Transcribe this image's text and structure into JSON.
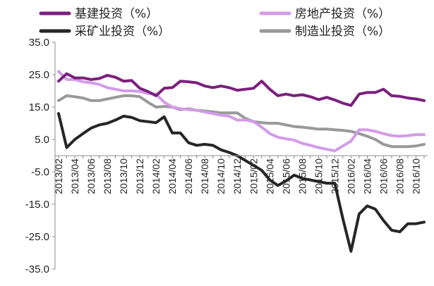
{
  "chart_data": {
    "type": "line",
    "ylim": [
      -35,
      35
    ],
    "yticks": [
      "35.0",
      "25.0",
      "15.0",
      "5.0",
      "-5.0",
      "-15.0",
      "-25.0",
      "-35.0"
    ],
    "grid": false,
    "legend_position": "top",
    "x_tick_labels": [
      "2013/02",
      "2013/04",
      "2013/06",
      "2013/08",
      "2013/10",
      "2013/12",
      "2014/02",
      "2014/04",
      "2014/06",
      "2014/08",
      "2014/10",
      "2014/12",
      "2015/02",
      "2015/04",
      "2015/06",
      "2015/08",
      "2015/10",
      "2015/12",
      "2016/02",
      "2016/04",
      "2016/06",
      "2016/08",
      "2016/10"
    ],
    "x": [
      "2013/02",
      "2013/03",
      "2013/04",
      "2013/05",
      "2013/06",
      "2013/07",
      "2013/08",
      "2013/09",
      "2013/10",
      "2013/11",
      "2013/12",
      "2014/01",
      "2014/02",
      "2014/03",
      "2014/04",
      "2014/05",
      "2014/06",
      "2014/07",
      "2014/08",
      "2014/09",
      "2014/10",
      "2014/11",
      "2014/12",
      "2015/01",
      "2015/02",
      "2015/03",
      "2015/04",
      "2015/05",
      "2015/06",
      "2015/07",
      "2015/08",
      "2015/09",
      "2015/10",
      "2015/11",
      "2015/12",
      "2016/01",
      "2016/02",
      "2016/03",
      "2016/04",
      "2016/05",
      "2016/06",
      "2016/07",
      "2016/08",
      "2016/09",
      "2016/10",
      "2016/11"
    ],
    "series": [
      {
        "name": "基建投资（%）",
        "color": "#7b1f7e",
        "values": [
          23.0,
          25.3,
          24.0,
          24.0,
          23.5,
          23.8,
          24.8,
          24.2,
          23.0,
          23.2,
          20.8,
          19.8,
          18.5,
          20.8,
          21.0,
          23.0,
          22.8,
          22.5,
          21.5,
          21.0,
          21.5,
          21.0,
          20.2,
          20.5,
          20.8,
          23.0,
          20.5,
          18.5,
          19.0,
          18.5,
          18.8,
          18.2,
          17.3,
          18.0,
          17.2,
          16.2,
          15.5,
          19.0,
          19.5,
          19.5,
          20.5,
          18.5,
          18.3,
          17.8,
          17.5,
          17.0
        ]
      },
      {
        "name": "房地产投资（%）",
        "color": "#d39be8",
        "values": [
          26.0,
          23.5,
          23.5,
          22.8,
          22.5,
          22.0,
          21.0,
          20.5,
          20.0,
          20.0,
          19.8,
          19.2,
          19.0,
          16.5,
          15.0,
          14.5,
          14.2,
          14.0,
          13.5,
          13.0,
          12.5,
          12.2,
          11.0,
          11.0,
          10.5,
          8.8,
          6.8,
          5.7,
          5.2,
          4.8,
          3.8,
          3.2,
          2.5,
          2.0,
          1.5,
          3.0,
          4.5,
          8.0,
          8.0,
          7.5,
          6.8,
          6.2,
          6.0,
          6.2,
          6.5,
          6.5
        ]
      },
      {
        "name": "采矿业投资（%）",
        "color": "#262626",
        "values": [
          13.0,
          2.5,
          5.0,
          6.8,
          8.5,
          9.5,
          10.0,
          11.0,
          12.2,
          11.8,
          10.8,
          10.5,
          10.2,
          12.0,
          7.0,
          7.0,
          4.0,
          3.2,
          3.5,
          3.2,
          1.8,
          1.0,
          0.0,
          -1.5,
          -3.0,
          -4.5,
          -7.5,
          -9.2,
          -7.8,
          -6.0,
          -7.0,
          -7.5,
          -8.0,
          -8.5,
          -8.5,
          -19.5,
          -29.5,
          -18.0,
          -15.5,
          -16.5,
          -20.0,
          -23.0,
          -23.5,
          -21.0,
          -21.0,
          -20.5
        ]
      },
      {
        "name": "制造业投资（%）",
        "color": "#999999",
        "values": [
          17.0,
          18.5,
          18.2,
          17.8,
          17.0,
          17.0,
          17.5,
          18.0,
          18.5,
          18.5,
          18.2,
          16.5,
          15.0,
          15.2,
          15.0,
          14.2,
          14.5,
          14.0,
          13.8,
          13.5,
          13.2,
          13.2,
          13.2,
          11.5,
          10.5,
          10.2,
          10.0,
          10.0,
          9.5,
          9.0,
          8.8,
          8.5,
          8.2,
          8.2,
          8.0,
          7.8,
          7.5,
          6.8,
          6.0,
          5.0,
          3.5,
          2.8,
          2.8,
          2.8,
          3.0,
          3.5
        ]
      }
    ]
  }
}
